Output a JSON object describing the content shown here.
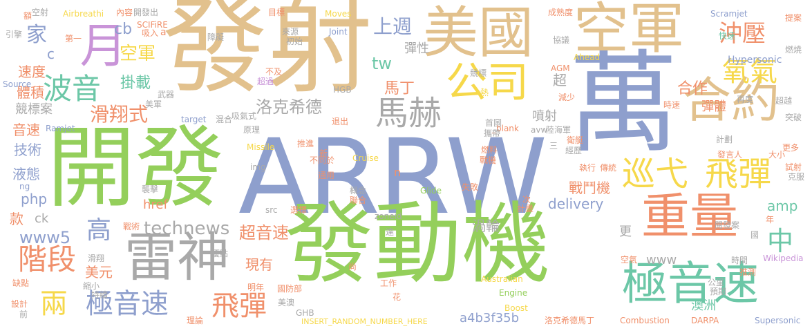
{
  "palette": {
    "green": "#94cf5b",
    "tan": "#e2c18d",
    "blue": "#8e9fcd",
    "orange": "#f0906b",
    "yellow": "#f6d84a",
    "gray": "#a9a9a9",
    "purple": "#c994d8",
    "teal": "#6cc7a7",
    "pink": "#ec8bb9",
    "lgreen": "#a8d86b"
  },
  "words": [
    {
      "text": "ARRW"
    },
    {
      "text": "發射"
    },
    {
      "text": "萬"
    },
    {
      "text": "開發"
    },
    {
      "text": "發動機"
    },
    {
      "text": "美國"
    },
    {
      "text": "空軍"
    },
    {
      "text": "合約"
    },
    {
      "text": "重量"
    },
    {
      "text": "極音速"
    },
    {
      "text": "雷神"
    },
    {
      "text": "公司"
    },
    {
      "text": "巡弋"
    },
    {
      "text": "飛彈"
    },
    {
      "text": "月"
    },
    {
      "text": "波音"
    },
    {
      "text": "馬赫"
    },
    {
      "text": "氧氣"
    },
    {
      "text": "沖壓"
    },
    {
      "text": "階段"
    },
    {
      "text": "兩"
    },
    {
      "text": "極音速"
    },
    {
      "text": "飛彈"
    },
    {
      "text": "中"
    },
    {
      "text": "technews"
    },
    {
      "text": "洛克希德"
    },
    {
      "text": "滑翔式"
    },
    {
      "text": "家"
    },
    {
      "text": "上週"
    },
    {
      "text": "高"
    },
    {
      "text": "空軍"
    },
    {
      "text": "超音速"
    },
    {
      "text": "合作"
    },
    {
      "text": "delivery"
    },
    {
      "text": "www5"
    },
    {
      "text": "tw"
    },
    {
      "text": "掛載"
    },
    {
      "text": "馬丁"
    },
    {
      "text": "戰鬥機"
    },
    {
      "text": "渦輪"
    },
    {
      "text": "www"
    },
    {
      "text": "美元"
    },
    {
      "text": "現有"
    },
    {
      "text": "amp"
    },
    {
      "text": "澳洲"
    },
    {
      "text": "a4b3f35b"
    },
    {
      "text": "技術"
    },
    {
      "text": "音速"
    },
    {
      "text": "速度"
    },
    {
      "text": "體積"
    },
    {
      "text": "液態"
    },
    {
      "text": "php"
    },
    {
      "text": "cb"
    },
    {
      "text": "c"
    },
    {
      "text": "彈性"
    },
    {
      "text": "噴射"
    },
    {
      "text": "彈體"
    },
    {
      "text": "競標案"
    },
    {
      "text": "href"
    },
    {
      "text": "款"
    },
    {
      "text": "ck"
    },
    {
      "text": "更"
    },
    {
      "text": "超"
    },
    {
      "text": "Hypersonic"
    },
    {
      "text": "Scramjet"
    },
    {
      "text": "Airbreathi"
    },
    {
      "text": "SCIFiRE"
    },
    {
      "text": "Moves"
    },
    {
      "text": "Joint"
    },
    {
      "text": "Ahead"
    },
    {
      "text": "AGM"
    },
    {
      "text": "Ramjet"
    },
    {
      "text": "Source"
    },
    {
      "text": "target"
    },
    {
      "text": "Missile"
    },
    {
      "text": "Australian"
    },
    {
      "text": "Cruise"
    },
    {
      "text": "Glide"
    },
    {
      "text": "Engine"
    },
    {
      "text": "Boost"
    },
    {
      "text": "Combustion"
    },
    {
      "text": "DARPA"
    },
    {
      "text": "Supersonic"
    },
    {
      "text": "Wikipedia"
    },
    {
      "text": "INSERT_RANDOM_NUMBER_HERE"
    },
    {
      "text": "_blank"
    },
    {
      "text": "avw"
    },
    {
      "text": "HGB"
    },
    {
      "text": "img"
    },
    {
      "text": "src"
    },
    {
      "text": "zoneid"
    },
    {
      "text": "ng"
    },
    {
      "text": "n"
    },
    {
      "text": "a"
    },
    {
      "text": "空射"
    },
    {
      "text": "內容"
    },
    {
      "text": "開發出"
    },
    {
      "text": "目標"
    },
    {
      "text": "成熟度"
    },
    {
      "text": "提案"
    },
    {
      "text": "引擎"
    },
    {
      "text": "第一"
    },
    {
      "text": "吸入"
    },
    {
      "text": "來源"
    },
    {
      "text": "初始"
    },
    {
      "text": "協議"
    },
    {
      "text": "快速"
    },
    {
      "text": "燃燒"
    },
    {
      "text": "不及"
    },
    {
      "text": "超過"
    },
    {
      "text": "競標"
    },
    {
      "text": "熱"
    },
    {
      "text": "減少"
    },
    {
      "text": "再度"
    },
    {
      "text": "超越"
    },
    {
      "text": "武器"
    },
    {
      "text": "美軍"
    },
    {
      "text": "混合"
    },
    {
      "text": "吸氣式"
    },
    {
      "text": "陸海軍"
    },
    {
      "text": "時速"
    },
    {
      "text": "突破"
    },
    {
      "text": "退出"
    },
    {
      "text": "首圖"
    },
    {
      "text": "攜帶"
    },
    {
      "text": "計劃"
    },
    {
      "text": "衛艇"
    },
    {
      "text": "經歷"
    },
    {
      "text": "原理"
    },
    {
      "text": "推進"
    },
    {
      "text": "新"
    },
    {
      "text": "三"
    },
    {
      "text": "不同於"
    },
    {
      "text": "燃料"
    },
    {
      "text": "戰機"
    },
    {
      "text": "發言人"
    },
    {
      "text": "大小"
    },
    {
      "text": "更多"
    },
    {
      "text": "執行"
    },
    {
      "text": "傳統"
    },
    {
      "text": "試射"
    },
    {
      "text": "克服"
    },
    {
      "text": "通用"
    },
    {
      "text": "概念"
    },
    {
      "text": "聯合"
    },
    {
      "text": "失敗"
    },
    {
      "text": "襲擊"
    },
    {
      "text": "選擇"
    },
    {
      "text": "次"
    },
    {
      "text": "計畫"
    },
    {
      "text": "戰術"
    },
    {
      "text": "閱發案"
    },
    {
      "text": "年"
    },
    {
      "text": "國"
    },
    {
      "text": "優點"
    },
    {
      "text": "達"
    },
    {
      "text": "滑翔"
    },
    {
      "text": "尚"
    },
    {
      "text": "空氣"
    },
    {
      "text": "時間"
    },
    {
      "text": "推測"
    },
    {
      "text": "缺點"
    },
    {
      "text": "縮小"
    },
    {
      "text": "持續"
    },
    {
      "text": "明年"
    },
    {
      "text": "國防部"
    },
    {
      "text": "工作"
    },
    {
      "text": "公里"
    },
    {
      "text": "預期"
    },
    {
      "text": "設計"
    },
    {
      "text": "前"
    },
    {
      "text": "美澳"
    },
    {
      "text": "花"
    },
    {
      "text": "理論"
    },
    {
      "text": "GHB"
    },
    {
      "text": "洛克希德馬丁"
    },
    {
      "text": "額"
    },
    {
      "text": "障礙"
    }
  ]
}
